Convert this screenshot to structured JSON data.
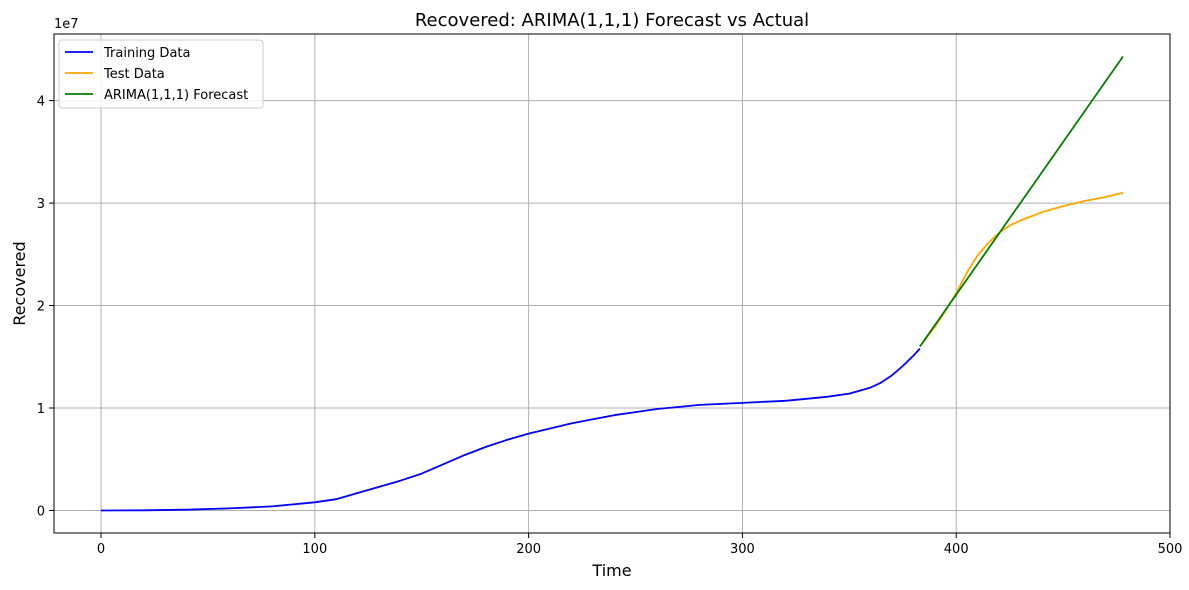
{
  "chart_data": {
    "type": "line",
    "title": "Recovered: ARIMA(1,1,1) Forecast vs Actual",
    "xlabel": "Time",
    "ylabel": "Recovered",
    "y_offset_label": "1e7",
    "xlim": [
      -22,
      500
    ],
    "ylim": [
      -2200000,
      46500000
    ],
    "x_ticks": [
      0,
      100,
      200,
      300,
      400,
      500
    ],
    "x_tick_labels": [
      "0",
      "100",
      "200",
      "300",
      "400",
      "500"
    ],
    "y_ticks": [
      0,
      10000000,
      20000000,
      30000000,
      40000000
    ],
    "y_tick_labels": [
      "0",
      "1",
      "2",
      "3",
      "4"
    ],
    "grid": true,
    "legend_position": "top-left",
    "series": [
      {
        "name": "Training Data",
        "color": "#0000ff",
        "x": [
          0,
          20,
          40,
          60,
          80,
          100,
          110,
          120,
          130,
          140,
          150,
          160,
          170,
          180,
          190,
          200,
          210,
          220,
          230,
          240,
          250,
          260,
          270,
          280,
          290,
          300,
          310,
          320,
          330,
          340,
          350,
          355,
          360,
          365,
          370,
          375,
          380,
          383
        ],
        "y": [
          0,
          20000,
          70000,
          200000,
          400000,
          800000,
          1100000,
          1700000,
          2300000,
          2900000,
          3600000,
          4500000,
          5400000,
          6200000,
          6900000,
          7500000,
          8000000,
          8500000,
          8900000,
          9300000,
          9600000,
          9900000,
          10100000,
          10300000,
          10400000,
          10500000,
          10600000,
          10700000,
          10900000,
          11100000,
          11400000,
          11700000,
          12000000,
          12500000,
          13200000,
          14100000,
          15100000,
          15800000
        ]
      },
      {
        "name": "Test Data",
        "color": "#ffa500",
        "x": [
          383,
          390,
          395,
          400,
          405,
          410,
          415,
          420,
          425,
          430,
          440,
          450,
          460,
          470,
          478
        ],
        "y": [
          16000000,
          17900000,
          19500000,
          21200000,
          23200000,
          24900000,
          26100000,
          27100000,
          27800000,
          28300000,
          29100000,
          29700000,
          30200000,
          30600000,
          31000000
        ]
      },
      {
        "name": "ARIMA(1,1,1) Forecast",
        "color": "#008000",
        "x": [
          383,
          478
        ],
        "y": [
          16000000,
          44300000
        ]
      }
    ]
  }
}
